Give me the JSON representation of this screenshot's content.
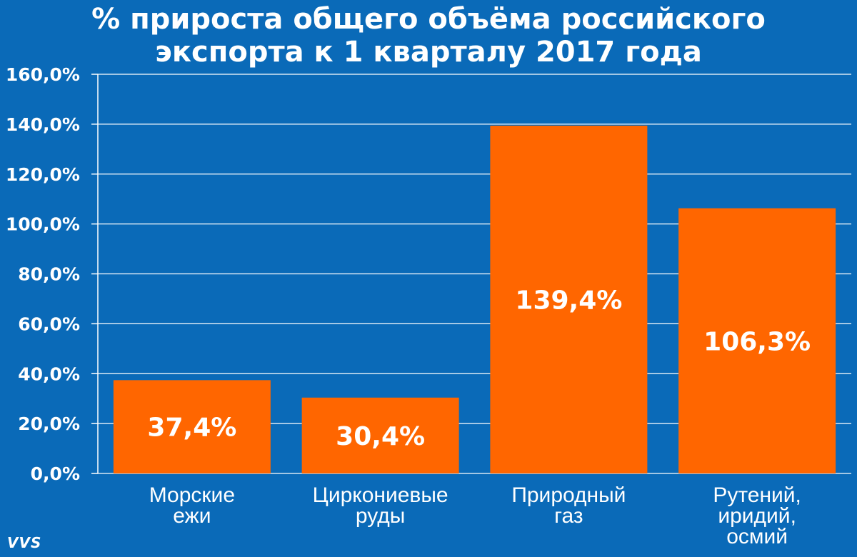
{
  "title_lines": [
    "% прироста общего объёма российского",
    "экспорта к 1 кварталу 2017 года"
  ],
  "logo_text": "VVS",
  "colors": {
    "background": "#0a6ab8",
    "bar": "#ff6600",
    "grid": "#ffffff",
    "text": "#ffffff"
  },
  "chart_data": {
    "type": "bar",
    "title": "% прироста общего объёма российского экспорта к 1 кварталу 2017 года",
    "xlabel": "",
    "ylabel": "",
    "ylim": [
      0,
      160
    ],
    "yticks": [
      0,
      20,
      40,
      60,
      80,
      100,
      120,
      140,
      160
    ],
    "ytick_labels": [
      "0,0%",
      "20,0%",
      "40,0%",
      "60,0%",
      "80,0%",
      "100,0%",
      "120,0%",
      "140,0%",
      "160,0%"
    ],
    "grid": true,
    "legend": "none",
    "categories": [
      [
        "Морские",
        "ежи"
      ],
      [
        "Циркониевые",
        "руды"
      ],
      [
        "Природный",
        "газ"
      ],
      [
        "Рутений,",
        "иридий,",
        "осмий"
      ]
    ],
    "values": [
      37.4,
      30.4,
      139.4,
      106.3
    ],
    "data_labels": [
      "37,4%",
      "30,4%",
      "139,4%",
      "106,3%"
    ]
  }
}
